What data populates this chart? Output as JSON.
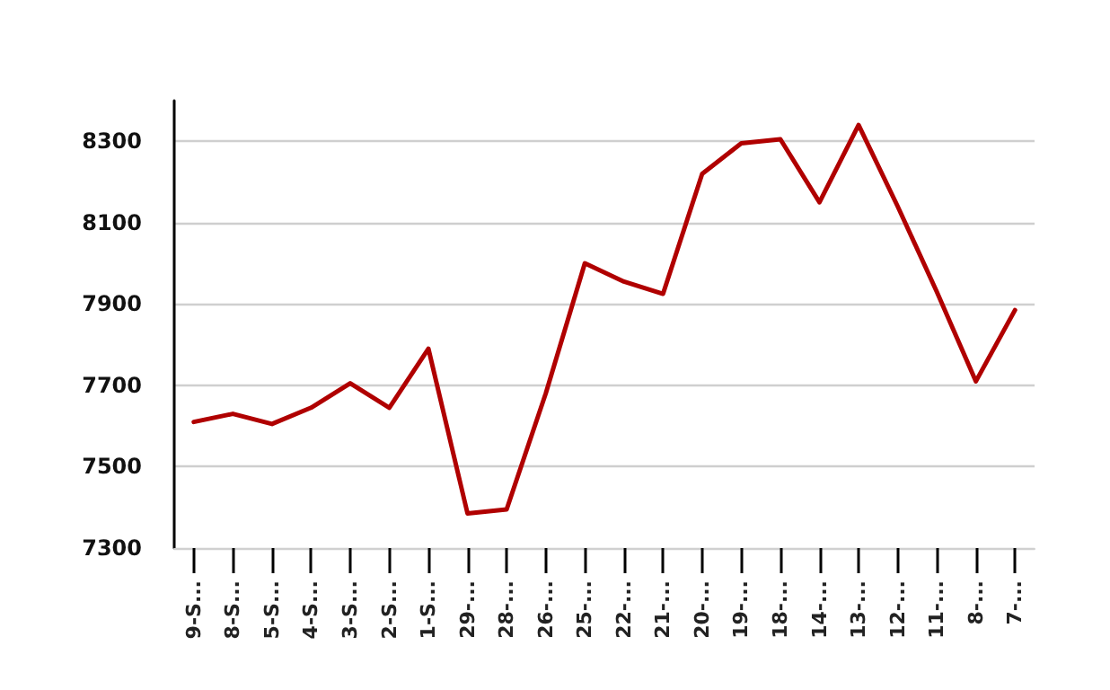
{
  "chart_data": {
    "type": "line",
    "categories": [
      "9-S...",
      "8-S...",
      "5-S...",
      "4-S...",
      "3-S...",
      "2-S...",
      "1-S...",
      "29-...",
      "28-...",
      "26-...",
      "25-...",
      "22-...",
      "21-...",
      "20-...",
      "19-...",
      "18-...",
      "14-...",
      "13-...",
      "12-...",
      "11-...",
      "8-...",
      "7-..."
    ],
    "series": [
      {
        "color": "#b00000",
        "values": [
          7610,
          7630,
          7605,
          7645,
          7705,
          7645,
          7790,
          7385,
          7395,
          7680,
          8000,
          7955,
          7925,
          8220,
          8295,
          8305,
          8150,
          8340,
          8140,
          7930,
          7710,
          7885
        ]
      }
    ],
    "ylim": [
      7300,
      8400
    ],
    "yticks": [
      7300,
      7500,
      7700,
      7900,
      8100,
      8300
    ],
    "grid": "y",
    "marker": "none",
    "line_style": "solid"
  }
}
